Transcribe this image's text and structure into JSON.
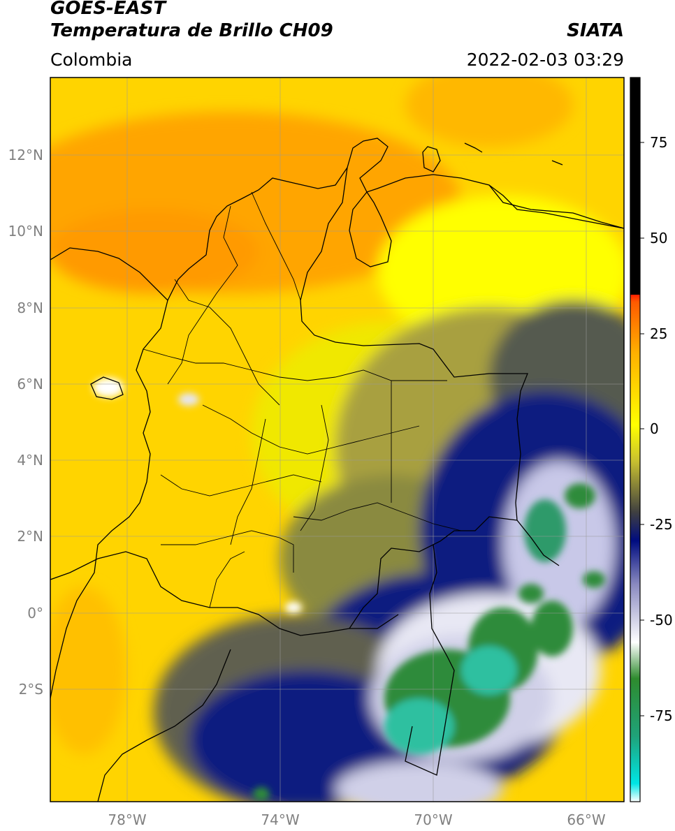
{
  "header": {
    "satellite": "GOES-EAST",
    "product": "Temperatura de Brillo CH09",
    "brand": "SIATA",
    "region": "Colombia",
    "datetime": "2022-02-03 03:29"
  },
  "map": {
    "lon_range": [
      -80,
      -65
    ],
    "lat_range": [
      -5,
      14
    ],
    "lat_ticks": [
      "12°N",
      "10°N",
      "8°N",
      "6°N",
      "4°N",
      "2°N",
      "0°",
      "2°S"
    ],
    "lon_ticks": [
      "78°W",
      "74°W",
      "70°W",
      "66°W"
    ],
    "gridlines": true
  },
  "colorbar": {
    "tick_labels": [
      "75",
      "50",
      "25",
      "0",
      "-25",
      "-50",
      "-75"
    ],
    "ticks": [
      75,
      50,
      25,
      0,
      -25,
      -50,
      -75
    ],
    "range": [
      -95,
      90
    ],
    "colors": {
      "saturated": "#000000",
      "warm": "#ff3300",
      "mid": "#ffa500",
      "yellow": "#ffff00",
      "olive": "#707040",
      "navy": "#001080",
      "white": "#ffffff",
      "green": "#2e8b3a",
      "teal": "#00e0e0"
    }
  }
}
